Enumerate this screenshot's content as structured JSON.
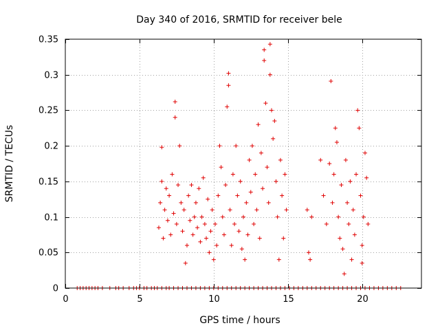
{
  "chart_data": {
    "type": "scatter",
    "title": "Day 340 of 2016, SRMTID for receiver bele",
    "xlabel": "GPS time / hours",
    "ylabel": "SRMTID / TECUs",
    "xlim": [
      0,
      24
    ],
    "ylim": [
      0,
      0.35
    ],
    "xticks": [
      0,
      5,
      10,
      15,
      20
    ],
    "yticks": [
      0,
      0.05,
      0.1,
      0.15,
      0.2,
      0.25,
      0.3,
      0.35
    ],
    "xtick_labels": [
      "0",
      "5",
      "10",
      "15",
      "20"
    ],
    "ytick_labels": [
      "0",
      "0.05",
      "0.1",
      "0.15",
      "0.2",
      "0.25",
      "0.3",
      "0.35"
    ],
    "grid": true,
    "marker": "+",
    "color": "#e00000",
    "series": [
      {
        "name": "SRMTID",
        "points": [
          [
            6.3,
            0.085
          ],
          [
            6.4,
            0.12
          ],
          [
            6.5,
            0.15
          ],
          [
            6.5,
            0.198
          ],
          [
            6.6,
            0.07
          ],
          [
            6.7,
            0.11
          ],
          [
            6.8,
            0.14
          ],
          [
            6.9,
            0.095
          ],
          [
            7.0,
            0.13
          ],
          [
            7.1,
            0.075
          ],
          [
            7.2,
            0.16
          ],
          [
            7.3,
            0.105
          ],
          [
            7.4,
            0.24
          ],
          [
            7.4,
            0.262
          ],
          [
            7.5,
            0.09
          ],
          [
            7.6,
            0.145
          ],
          [
            7.7,
            0.2
          ],
          [
            7.8,
            0.12
          ],
          [
            7.9,
            0.08
          ],
          [
            8.0,
            0.11
          ],
          [
            8.1,
            0.035
          ],
          [
            8.2,
            0.06
          ],
          [
            8.3,
            0.13
          ],
          [
            8.4,
            0.095
          ],
          [
            8.5,
            0.145
          ],
          [
            8.6,
            0.075
          ],
          [
            8.7,
            0.1
          ],
          [
            8.8,
            0.12
          ],
          [
            8.9,
            0.085
          ],
          [
            9.0,
            0.14
          ],
          [
            9.1,
            0.065
          ],
          [
            9.2,
            0.1
          ],
          [
            9.3,
            0.155
          ],
          [
            9.4,
            0.09
          ],
          [
            9.5,
            0.07
          ],
          [
            9.6,
            0.125
          ],
          [
            9.7,
            0.05
          ],
          [
            9.8,
            0.08
          ],
          [
            9.9,
            0.11
          ],
          [
            10.0,
            0.04
          ],
          [
            10.1,
            0.09
          ],
          [
            10.2,
            0.06
          ],
          [
            10.3,
            0.13
          ],
          [
            10.4,
            0.2
          ],
          [
            10.5,
            0.17
          ],
          [
            10.6,
            0.1
          ],
          [
            10.7,
            0.075
          ],
          [
            10.8,
            0.145
          ],
          [
            10.9,
            0.255
          ],
          [
            11.0,
            0.302
          ],
          [
            11.0,
            0.285
          ],
          [
            11.1,
            0.11
          ],
          [
            11.2,
            0.06
          ],
          [
            11.3,
            0.16
          ],
          [
            11.4,
            0.09
          ],
          [
            11.5,
            0.2
          ],
          [
            11.6,
            0.13
          ],
          [
            11.7,
            0.08
          ],
          [
            11.8,
            0.15
          ],
          [
            11.9,
            0.055
          ],
          [
            12.0,
            0.1
          ],
          [
            12.1,
            0.04
          ],
          [
            12.2,
            0.12
          ],
          [
            12.3,
            0.075
          ],
          [
            12.4,
            0.18
          ],
          [
            12.5,
            0.135
          ],
          [
            12.6,
            0.2
          ],
          [
            12.7,
            0.09
          ],
          [
            12.8,
            0.16
          ],
          [
            12.9,
            0.11
          ],
          [
            13.0,
            0.23
          ],
          [
            13.1,
            0.07
          ],
          [
            13.2,
            0.19
          ],
          [
            13.3,
            0.14
          ],
          [
            13.4,
            0.335
          ],
          [
            13.4,
            0.32
          ],
          [
            13.5,
            0.26
          ],
          [
            13.6,
            0.17
          ],
          [
            13.7,
            0.12
          ],
          [
            13.8,
            0.343
          ],
          [
            13.8,
            0.3
          ],
          [
            13.9,
            0.25
          ],
          [
            14.0,
            0.21
          ],
          [
            14.1,
            0.235
          ],
          [
            14.2,
            0.15
          ],
          [
            14.3,
            0.1
          ],
          [
            14.4,
            0.04
          ],
          [
            14.5,
            0.18
          ],
          [
            14.6,
            0.13
          ],
          [
            14.7,
            0.07
          ],
          [
            14.8,
            0.16
          ],
          [
            14.9,
            0.11
          ],
          [
            16.3,
            0.11
          ],
          [
            16.4,
            0.05
          ],
          [
            16.5,
            0.04
          ],
          [
            16.6,
            0.1
          ],
          [
            17.2,
            0.18
          ],
          [
            17.4,
            0.13
          ],
          [
            17.6,
            0.09
          ],
          [
            17.8,
            0.175
          ],
          [
            17.9,
            0.291
          ],
          [
            18.0,
            0.12
          ],
          [
            18.1,
            0.16
          ],
          [
            18.2,
            0.225
          ],
          [
            18.3,
            0.205
          ],
          [
            18.4,
            0.1
          ],
          [
            18.5,
            0.07
          ],
          [
            18.6,
            0.145
          ],
          [
            18.7,
            0.055
          ],
          [
            18.8,
            0.02
          ],
          [
            18.9,
            0.18
          ],
          [
            19.0,
            0.12
          ],
          [
            19.1,
            0.09
          ],
          [
            19.2,
            0.15
          ],
          [
            19.3,
            0.04
          ],
          [
            19.4,
            0.11
          ],
          [
            19.5,
            0.075
          ],
          [
            19.6,
            0.16
          ],
          [
            19.7,
            0.25
          ],
          [
            19.8,
            0.225
          ],
          [
            19.9,
            0.13
          ],
          [
            20.0,
            0.035
          ],
          [
            20.0,
            0.06
          ],
          [
            20.1,
            0.1
          ],
          [
            20.2,
            0.19
          ],
          [
            20.3,
            0.155
          ],
          [
            20.4,
            0.09
          ]
        ],
        "baseline_zero_x": [
          0.8,
          1.0,
          1.2,
          1.4,
          1.6,
          1.8,
          2.0,
          2.2,
          2.5,
          3.0,
          3.4,
          3.6,
          3.9,
          4.3,
          4.6,
          4.8,
          5.0,
          5.3,
          5.5,
          5.8,
          6.0,
          6.2,
          6.5,
          6.8,
          7.0,
          7.3,
          7.6,
          7.9,
          8.2,
          8.5,
          8.8,
          9.1,
          9.4,
          9.7,
          10.0,
          10.3,
          10.6,
          10.9,
          11.2,
          11.5,
          11.8,
          12.1,
          12.4,
          12.7,
          13.0,
          13.3,
          13.6,
          13.9,
          14.2,
          14.5,
          14.8,
          15.1,
          15.4,
          15.7,
          16.0,
          16.3,
          16.6,
          16.9,
          17.2,
          17.5,
          17.8,
          18.1,
          18.4,
          18.7,
          19.0,
          19.3,
          19.6,
          19.9,
          20.2,
          20.5,
          20.8,
          21.1,
          21.4,
          21.7,
          22.0,
          22.3,
          22.6
        ]
      }
    ]
  }
}
